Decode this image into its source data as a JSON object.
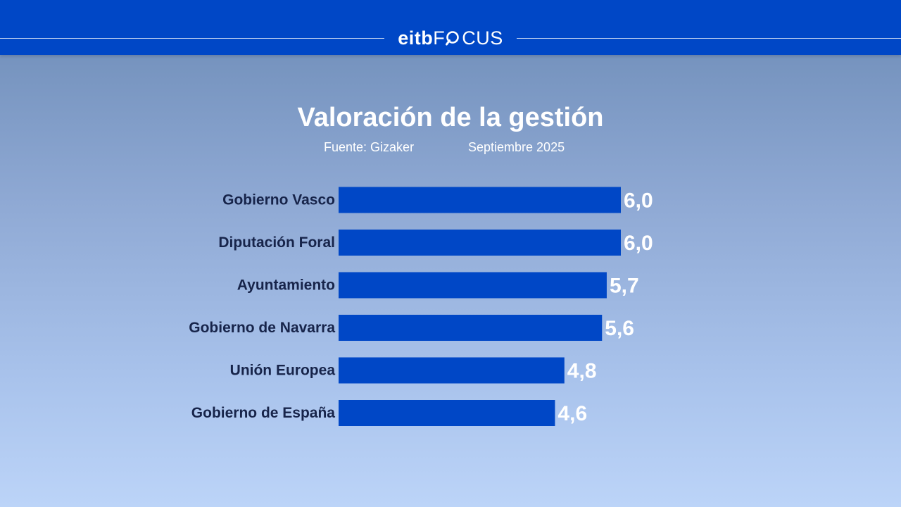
{
  "header": {
    "brand_primary": "eitb",
    "brand_secondary_before": "F",
    "brand_secondary_after": "CUS",
    "bar_color": "#0047c6"
  },
  "chart_data": {
    "type": "bar",
    "orientation": "horizontal",
    "title": "Valoración de la gestión",
    "source": "Fuente: Gizaker",
    "date": "Septiembre 2025",
    "categories": [
      "Gobierno Vasco",
      "Diputación Foral",
      "Ayuntamiento",
      "Gobierno de Navarra",
      "Unión Europea",
      "Gobierno de España"
    ],
    "values": [
      6.0,
      6.0,
      5.7,
      5.6,
      4.8,
      4.6
    ],
    "value_labels": [
      "6,0",
      "6,0",
      "5,7",
      "5,6",
      "4,8",
      "4,6"
    ],
    "bar_color": "#0047c6",
    "grid": false,
    "legend": "none"
  }
}
